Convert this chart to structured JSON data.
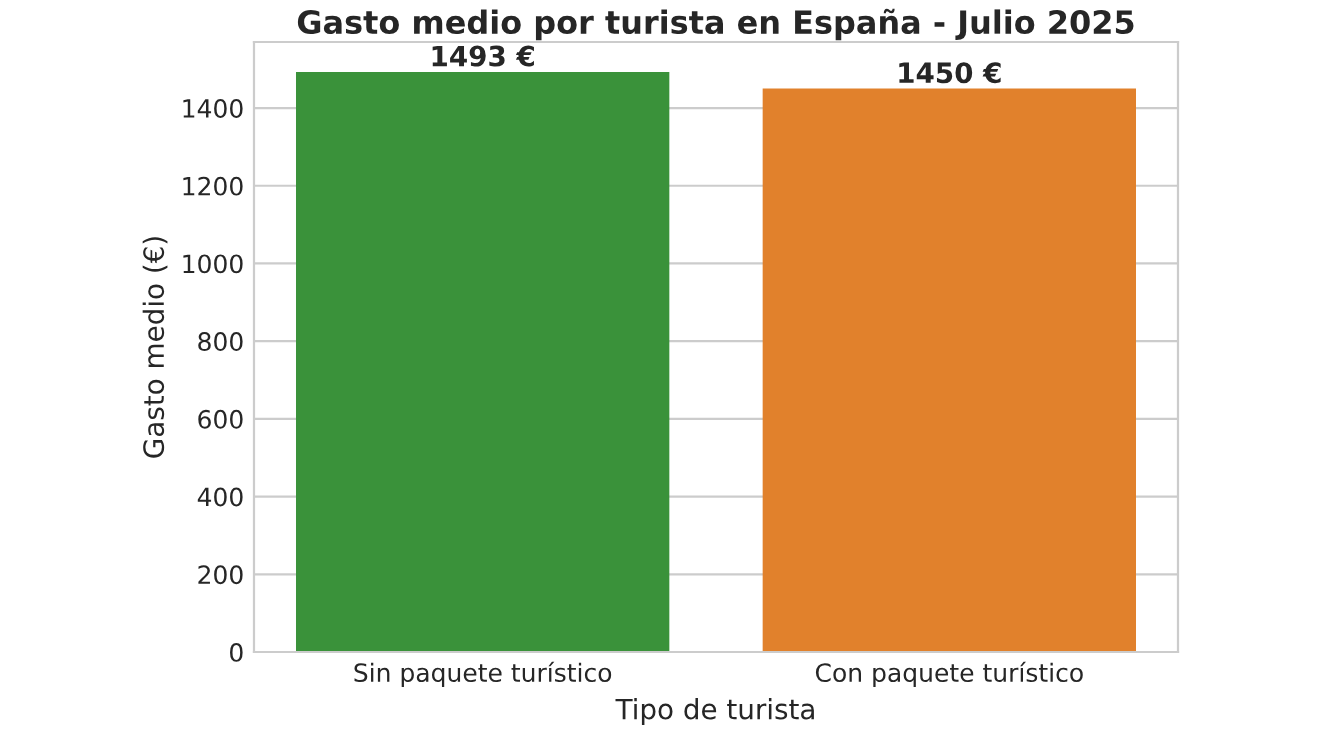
{
  "chart_data": {
    "type": "bar",
    "title": "Gasto medio por turista en España - Julio 2025",
    "xlabel": "Tipo de turista",
    "ylabel": "Gasto medio (€)",
    "categories": [
      "Sin paquete turístico",
      "Con paquete turístico"
    ],
    "values": [
      1493,
      1450
    ],
    "colors": [
      "#3a923a",
      "#e1812c"
    ],
    "value_labels": [
      "1493 €",
      "1450 €"
    ],
    "ylim": [
      0,
      1570
    ],
    "yticks": [
      0,
      200,
      400,
      600,
      800,
      1000,
      1200,
      1400
    ],
    "grid": "y",
    "legend": false
  }
}
